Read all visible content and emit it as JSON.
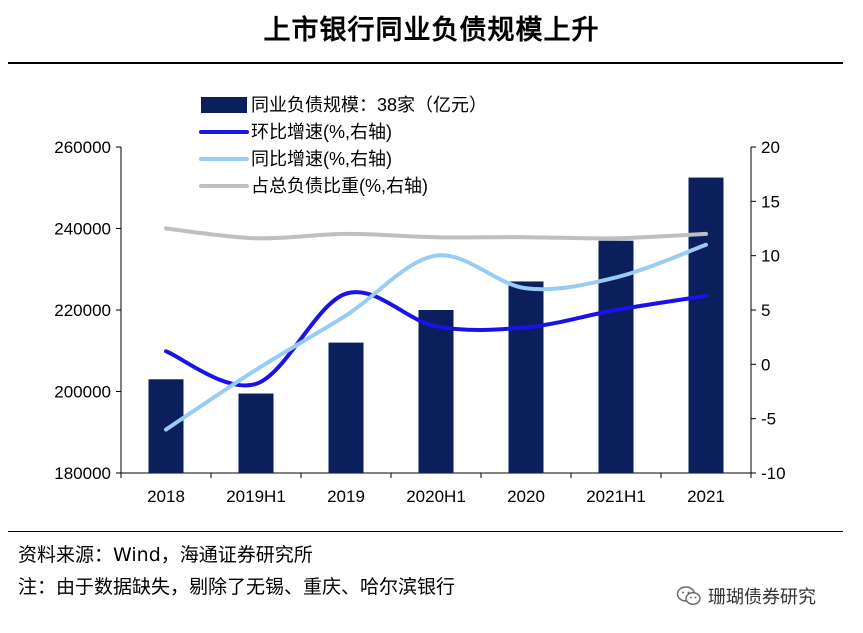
{
  "title": "上市银行同业负债规模上升",
  "chart_data": {
    "type": "bar+line",
    "categories": [
      "2018",
      "2019H1",
      "2019",
      "2020H1",
      "2020",
      "2021H1",
      "2021"
    ],
    "bars": {
      "name": "同业负债规模：38家（亿元）",
      "values": [
        203000,
        199500,
        212000,
        220000,
        227000,
        237000,
        252500
      ],
      "color": "#0b1f5c"
    },
    "lines": [
      {
        "name": "环比增速(%,右轴)",
        "values": [
          1.2,
          -1.8,
          6.5,
          3.5,
          3.4,
          5.0,
          6.3
        ],
        "color": "#1a12e6"
      },
      {
        "name": "同比增速(%,右轴)",
        "values": [
          -6.0,
          -0.5,
          4.5,
          10.0,
          7.0,
          8.0,
          11.0
        ],
        "color": "#99ccf2"
      },
      {
        "name": "占总负债比重(%,右轴)",
        "values": [
          12.5,
          11.6,
          12.0,
          11.7,
          11.7,
          11.6,
          12.0
        ],
        "color": "#bfbfbf"
      }
    ],
    "y_left": {
      "min": 180000,
      "max": 260000,
      "ticks": [
        "180000",
        "200000",
        "220000",
        "240000",
        "260000"
      ]
    },
    "y_right": {
      "min": -10,
      "max": 20,
      "ticks": [
        "-10",
        "-5",
        "0",
        "5",
        "10",
        "15",
        "20"
      ]
    }
  },
  "source": "资料来源：Wind，海通证券研究所",
  "note": "注：由于数据缺失，剔除了无锡、重庆、哈尔滨银行",
  "watermark": "珊瑚债券研究"
}
